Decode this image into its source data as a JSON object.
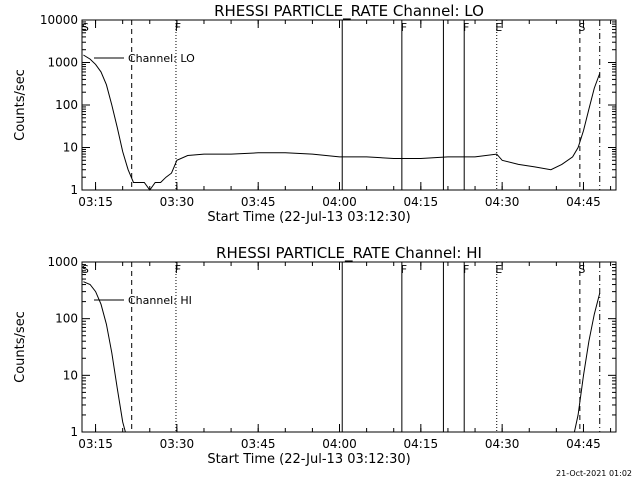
{
  "footer": {
    "date": "21-Oct-2021 01:02"
  },
  "colors": {
    "background": "#ffffff",
    "foreground": "#000000"
  },
  "chart_data": [
    {
      "type": "line",
      "title": "RHESSI PARTICLE_RATE Channel: LO",
      "xlabel": "Start Time (22-Jul-13 03:12:30)",
      "ylabel": "Counts/sec",
      "yscale": "log",
      "ylim": [
        1,
        10000
      ],
      "xlim_minutes_after_start": [
        0,
        98.5
      ],
      "x_tick_labels": [
        "03:15",
        "03:30",
        "03:45",
        "04:00",
        "04:15",
        "04:30",
        "04:45"
      ],
      "y_tick_labels": [
        "1",
        "10",
        "100",
        "1000",
        "10000"
      ],
      "legend": {
        "entry": "Channel: LO",
        "placement": "top-left"
      },
      "markers": [
        {
          "label": "S",
          "time": "03:12:45",
          "style": "none"
        },
        {
          "label": "",
          "time": "03:21:40",
          "style": "dashed"
        },
        {
          "label": "F",
          "time": "03:29:50",
          "style": "dotted"
        },
        {
          "label": "",
          "time": "04:00:30",
          "style": "solid"
        },
        {
          "label": "F",
          "time": "04:11:30",
          "style": "solid"
        },
        {
          "label": "",
          "time": "04:19:10",
          "style": "solid"
        },
        {
          "label": "F",
          "time": "04:23:00",
          "style": "solid"
        },
        {
          "label": "E",
          "time": "04:29:00",
          "style": "dotted"
        },
        {
          "label": "S",
          "time": "04:44:20",
          "style": "dashed"
        },
        {
          "label": "",
          "time": "04:48:00",
          "style": "dashdot"
        }
      ],
      "series": [
        {
          "x": [
            "03:12:45",
            "03:14:00",
            "03:15:00",
            "03:16:00",
            "03:17:00",
            "03:18:00",
            "03:19:00",
            "03:20:00",
            "03:21:00",
            "03:22:00",
            "03:23:00",
            "03:24:00",
            "03:25:00",
            "03:26:00",
            "03:27:00",
            "03:28:00",
            "03:29:00",
            "03:30:00",
            "03:32:00",
            "03:35:00",
            "03:40:00",
            "03:45:00",
            "03:50:00",
            "03:55:00",
            "04:00:00",
            "04:05:00",
            "04:10:00",
            "04:15:00",
            "04:20:00",
            "04:25:00",
            "04:29:00",
            "04:30:00",
            "04:33:00",
            "04:36:00",
            "04:39:00",
            "04:41:00",
            "04:43:00",
            "04:44:00",
            "04:45:00",
            "04:46:00",
            "04:47:00",
            "04:48:00"
          ],
          "y": [
            1500,
            1200,
            900,
            600,
            300,
            100,
            30,
            8,
            3,
            1.5,
            1.5,
            1.5,
            1,
            1.5,
            1.5,
            2,
            2.5,
            5,
            6.5,
            7,
            7,
            7.5,
            7.5,
            7,
            6,
            6,
            5.5,
            5.5,
            6,
            6,
            7,
            5,
            4,
            3.5,
            3,
            4,
            6,
            10,
            25,
            80,
            250,
            550
          ]
        }
      ]
    },
    {
      "type": "line",
      "title": "RHESSI PARTICLE_RATE Channel: HI",
      "xlabel": "Start Time (22-Jul-13 03:12:30)",
      "ylabel": "Counts/sec",
      "yscale": "log",
      "ylim": [
        1,
        1000
      ],
      "xlim_minutes_after_start": [
        0,
        98.5
      ],
      "x_tick_labels": [
        "03:15",
        "03:30",
        "03:45",
        "04:00",
        "04:15",
        "04:30",
        "04:45"
      ],
      "y_tick_labels": [
        "1",
        "10",
        "100",
        "1000"
      ],
      "legend": {
        "entry": "Channel: HI",
        "placement": "top-left"
      },
      "markers": [
        {
          "label": "S",
          "time": "03:12:45",
          "style": "none"
        },
        {
          "label": "",
          "time": "03:21:40",
          "style": "dashed"
        },
        {
          "label": "F",
          "time": "03:29:50",
          "style": "dotted"
        },
        {
          "label": "",
          "time": "04:00:30",
          "style": "solid"
        },
        {
          "label": "F",
          "time": "04:11:30",
          "style": "solid"
        },
        {
          "label": "",
          "time": "04:19:10",
          "style": "solid"
        },
        {
          "label": "F",
          "time": "04:23:00",
          "style": "solid"
        },
        {
          "label": "E",
          "time": "04:29:00",
          "style": "dotted"
        },
        {
          "label": "S",
          "time": "04:44:20",
          "style": "dashed"
        },
        {
          "label": "",
          "time": "04:48:00",
          "style": "dashdot"
        }
      ],
      "series": [
        {
          "x": [
            "03:12:45",
            "03:14:00",
            "03:15:00",
            "03:16:00",
            "03:17:00",
            "03:18:00",
            "03:19:00",
            "03:20:00",
            "03:20:30",
            "04:43:20",
            "04:44:00",
            "04:45:00",
            "04:46:00",
            "04:47:00",
            "04:48:00"
          ],
          "y": [
            450,
            400,
            300,
            180,
            80,
            25,
            6,
            1.5,
            1,
            1,
            2,
            10,
            40,
            120,
            280
          ]
        }
      ]
    }
  ]
}
